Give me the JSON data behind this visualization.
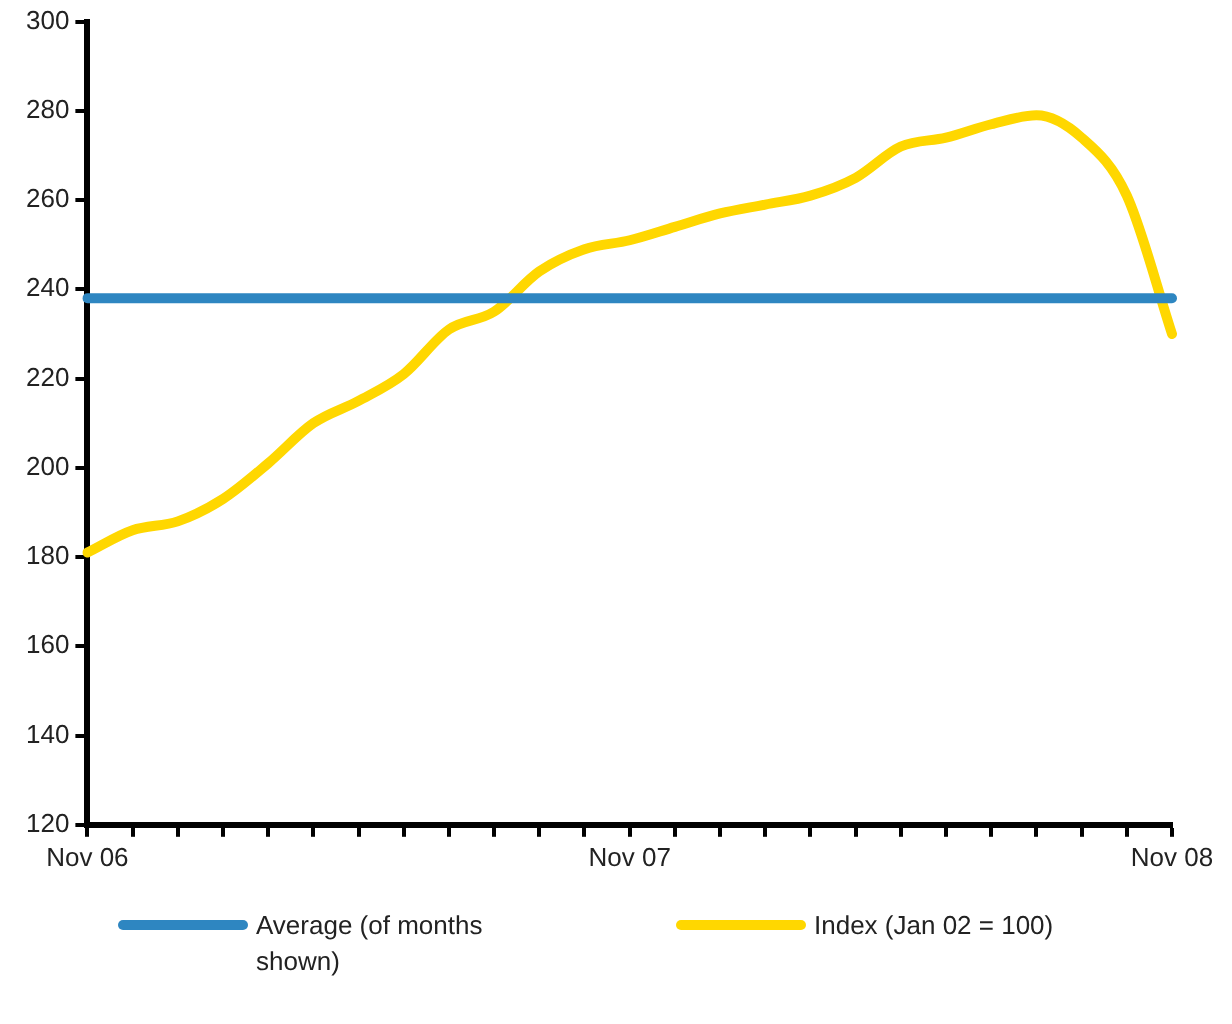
{
  "chart_data": {
    "type": "line",
    "categories": [
      "Nov 06",
      null,
      null,
      null,
      null,
      null,
      null,
      null,
      null,
      null,
      null,
      null,
      "Nov 07",
      null,
      null,
      null,
      null,
      null,
      null,
      null,
      null,
      null,
      null,
      null,
      "Nov 08"
    ],
    "series": [
      {
        "name": "Average (of months shown)",
        "color": "#2e86c1",
        "values": [
          238,
          238,
          238,
          238,
          238,
          238,
          238,
          238,
          238,
          238,
          238,
          238,
          238,
          238,
          238,
          238,
          238,
          238,
          238,
          238,
          238,
          238,
          238,
          238,
          238
        ]
      },
      {
        "name": "Index (Jan 02 = 100)",
        "color": "#ffd700",
        "values": [
          181,
          186,
          188,
          193,
          201,
          210,
          215,
          221,
          231,
          235,
          244,
          249,
          251,
          254,
          257,
          259,
          261,
          265,
          272,
          274,
          277,
          279,
          274,
          261,
          230
        ]
      }
    ],
    "ylim": [
      120,
      300
    ],
    "yticks": [
      120,
      140,
      160,
      180,
      200,
      220,
      240,
      260,
      280,
      300
    ],
    "grid": false,
    "legend": "bottom",
    "marker": "none",
    "line_style": "solid"
  }
}
